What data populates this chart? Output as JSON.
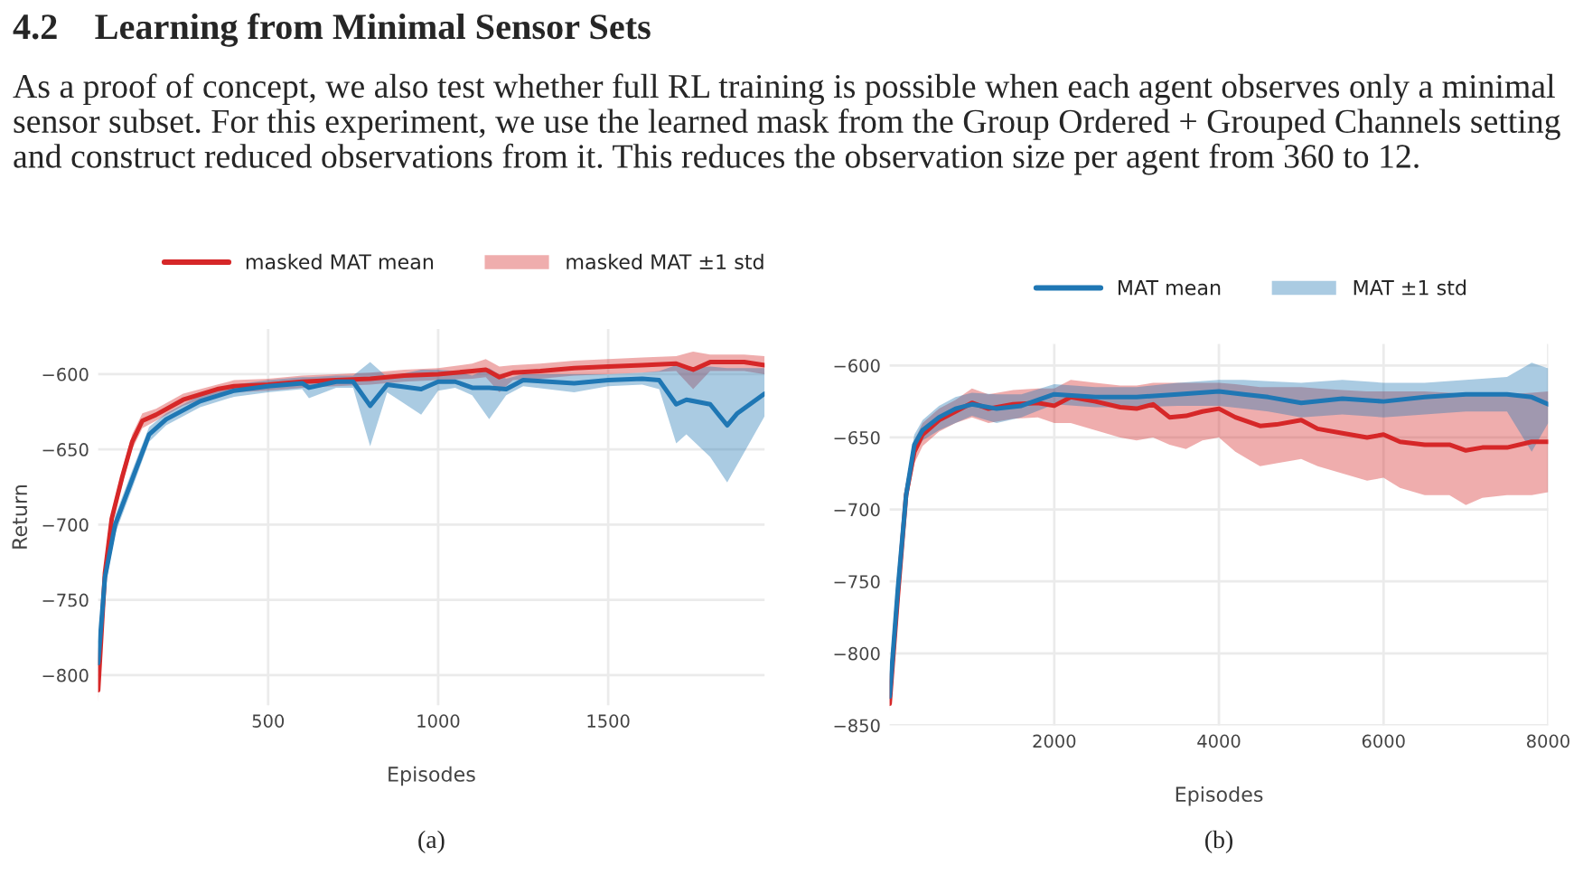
{
  "chart_data": [
    {
      "type": "other",
      "title": "4.2    Learning from Minimal Sensor Sets",
      "annotations": [
        "As a proof of concept, we also test whether full RL training is possible when each agent observes only a minimal sensor subset. For this experiment, we use the learned mask from the Group Ordered + Grouped Channels setting and construct reduced observations from it. This reduces the observation size per agent from 360 to 12."
      ]
    },
    {
      "type": "line",
      "xlabel": "Episodes",
      "ylabel": "Return",
      "xlim": [
        0,
        1960
      ],
      "ylim": [
        -820,
        -570
      ],
      "xticks": [
        500,
        1000,
        1500
      ],
      "yticks": [
        -800,
        -750,
        -700,
        -650,
        -600
      ],
      "grid": true,
      "legend": "top",
      "annotations": [
        "masked MAT ±1 std",
        "(a)"
      ],
      "series": [
        {
          "name": "masked MAT mean",
          "color": "#d62728",
          "x": [
            0,
            20,
            40,
            70,
            100,
            130,
            170,
            250,
            350,
            400,
            500,
            600,
            700,
            800,
            900,
            1000,
            1100,
            1140,
            1180,
            1220,
            1300,
            1400,
            1500,
            1600,
            1700,
            1750,
            1800,
            1900,
            1960
          ],
          "values": [
            -810,
            -732,
            -696,
            -669,
            -645,
            -631,
            -627,
            -617,
            -610,
            -608,
            -607,
            -605,
            -604,
            -603,
            -601,
            -600,
            -598,
            -597,
            -602,
            -599,
            -598,
            -596,
            -595,
            -594,
            -593,
            -597,
            -592,
            -592,
            -594
          ],
          "lower": [
            -818,
            -738,
            -701,
            -674,
            -650,
            -636,
            -631,
            -621,
            -613,
            -612,
            -611,
            -609,
            -608,
            -607,
            -605,
            -604,
            -603,
            -602,
            -612,
            -604,
            -603,
            -601,
            -600,
            -599,
            -598,
            -610,
            -598,
            -598,
            -600
          ],
          "upper": [
            -802,
            -726,
            -691,
            -664,
            -640,
            -626,
            -623,
            -613,
            -607,
            -604,
            -603,
            -601,
            -600,
            -599,
            -597,
            -596,
            -593,
            -590,
            -595,
            -594,
            -593,
            -591,
            -590,
            -589,
            -588,
            -585,
            -587,
            -587,
            -588
          ]
        },
        {
          "color": "#1f77b4",
          "x": [
            0,
            20,
            50,
            100,
            150,
            200,
            300,
            400,
            500,
            600,
            620,
            700,
            750,
            800,
            850,
            950,
            1000,
            1050,
            1100,
            1150,
            1200,
            1250,
            1400,
            1500,
            1600,
            1650,
            1700,
            1730,
            1800,
            1850,
            1880,
            1960
          ],
          "values": [
            -792,
            -735,
            -700,
            -670,
            -640,
            -630,
            -618,
            -611,
            -608,
            -606,
            -609,
            -605,
            -605,
            -621,
            -607,
            -610,
            -605,
            -605,
            -609,
            -609,
            -610,
            -604,
            -606,
            -604,
            -603,
            -604,
            -620,
            -617,
            -620,
            -634,
            -626,
            -613
          ],
          "lower": [
            -800,
            -742,
            -706,
            -676,
            -645,
            -634,
            -622,
            -615,
            -612,
            -610,
            -616,
            -609,
            -609,
            -648,
            -612,
            -627,
            -611,
            -609,
            -614,
            -630,
            -614,
            -608,
            -612,
            -608,
            -607,
            -610,
            -646,
            -640,
            -655,
            -672,
            -660,
            -628
          ],
          "upper": [
            -784,
            -728,
            -694,
            -664,
            -635,
            -626,
            -614,
            -607,
            -604,
            -602,
            -602,
            -601,
            -601,
            -592,
            -602,
            -597,
            -597,
            -598,
            -601,
            -596,
            -603,
            -600,
            -600,
            -600,
            -599,
            -598,
            -594,
            -596,
            -595,
            -596,
            -596,
            -596
          ]
        }
      ]
    },
    {
      "type": "line",
      "xlabel": "Episodes",
      "xlim": [
        0,
        8000
      ],
      "ylim": [
        -850,
        -585
      ],
      "xticks": [
        2000,
        4000,
        6000,
        8000
      ],
      "yticks": [
        -850,
        -800,
        -750,
        -700,
        -650,
        -600
      ],
      "grid": true,
      "legend": "top",
      "annotations": [
        "MAT ±1 std",
        "(b)"
      ],
      "series": [
        {
          "color": "#d62728",
          "x": [
            0,
            100,
            200,
            300,
            400,
            600,
            800,
            1000,
            1200,
            1500,
            1800,
            2000,
            2200,
            2500,
            2800,
            3000,
            3200,
            3400,
            3600,
            3800,
            4000,
            4200,
            4500,
            4700,
            5000,
            5200,
            5500,
            5800,
            6000,
            6200,
            6500,
            6800,
            7000,
            7200,
            7500,
            7800,
            8000
          ],
          "values": [
            -835,
            -760,
            -690,
            -660,
            -648,
            -638,
            -632,
            -626,
            -630,
            -627,
            -626,
            -628,
            -622,
            -625,
            -629,
            -630,
            -627,
            -636,
            -635,
            -632,
            -630,
            -636,
            -642,
            -641,
            -638,
            -644,
            -647,
            -650,
            -648,
            -653,
            -655,
            -655,
            -659,
            -657,
            -657,
            -653,
            -653
          ],
          "lower": [
            -840,
            -768,
            -698,
            -668,
            -656,
            -646,
            -640,
            -636,
            -640,
            -637,
            -636,
            -640,
            -640,
            -645,
            -650,
            -652,
            -650,
            -655,
            -658,
            -652,
            -650,
            -660,
            -670,
            -668,
            -665,
            -670,
            -675,
            -680,
            -678,
            -685,
            -690,
            -690,
            -697,
            -692,
            -690,
            -690,
            -688
          ],
          "upper": [
            -830,
            -752,
            -682,
            -652,
            -640,
            -630,
            -624,
            -616,
            -620,
            -617,
            -616,
            -616,
            -610,
            -612,
            -614,
            -614,
            -612,
            -612,
            -612,
            -612,
            -612,
            -613,
            -615,
            -615,
            -615,
            -616,
            -617,
            -618,
            -618,
            -618,
            -618,
            -619,
            -620,
            -620,
            -620,
            -619,
            -618
          ]
        },
        {
          "name": "MAT mean",
          "color": "#1f77b4",
          "x": [
            0,
            100,
            200,
            300,
            400,
            600,
            800,
            1000,
            1300,
            1600,
            2000,
            2500,
            3000,
            3500,
            4000,
            4300,
            4600,
            5000,
            5500,
            6000,
            6500,
            7000,
            7500,
            7800,
            8000
          ],
          "values": [
            -830,
            -755,
            -690,
            -655,
            -645,
            -636,
            -630,
            -627,
            -630,
            -628,
            -620,
            -622,
            -622,
            -620,
            -618,
            -620,
            -622,
            -626,
            -623,
            -625,
            -622,
            -620,
            -620,
            -622,
            -627
          ],
          "lower": [
            -836,
            -762,
            -697,
            -662,
            -652,
            -645,
            -640,
            -635,
            -640,
            -636,
            -627,
            -629,
            -629,
            -628,
            -628,
            -630,
            -632,
            -636,
            -634,
            -636,
            -634,
            -632,
            -632,
            -660,
            -640
          ],
          "upper": [
            -824,
            -748,
            -683,
            -648,
            -638,
            -628,
            -622,
            -619,
            -620,
            -620,
            -613,
            -615,
            -615,
            -612,
            -610,
            -610,
            -611,
            -612,
            -610,
            -612,
            -612,
            -610,
            -608,
            -598,
            -602
          ]
        }
      ]
    }
  ]
}
